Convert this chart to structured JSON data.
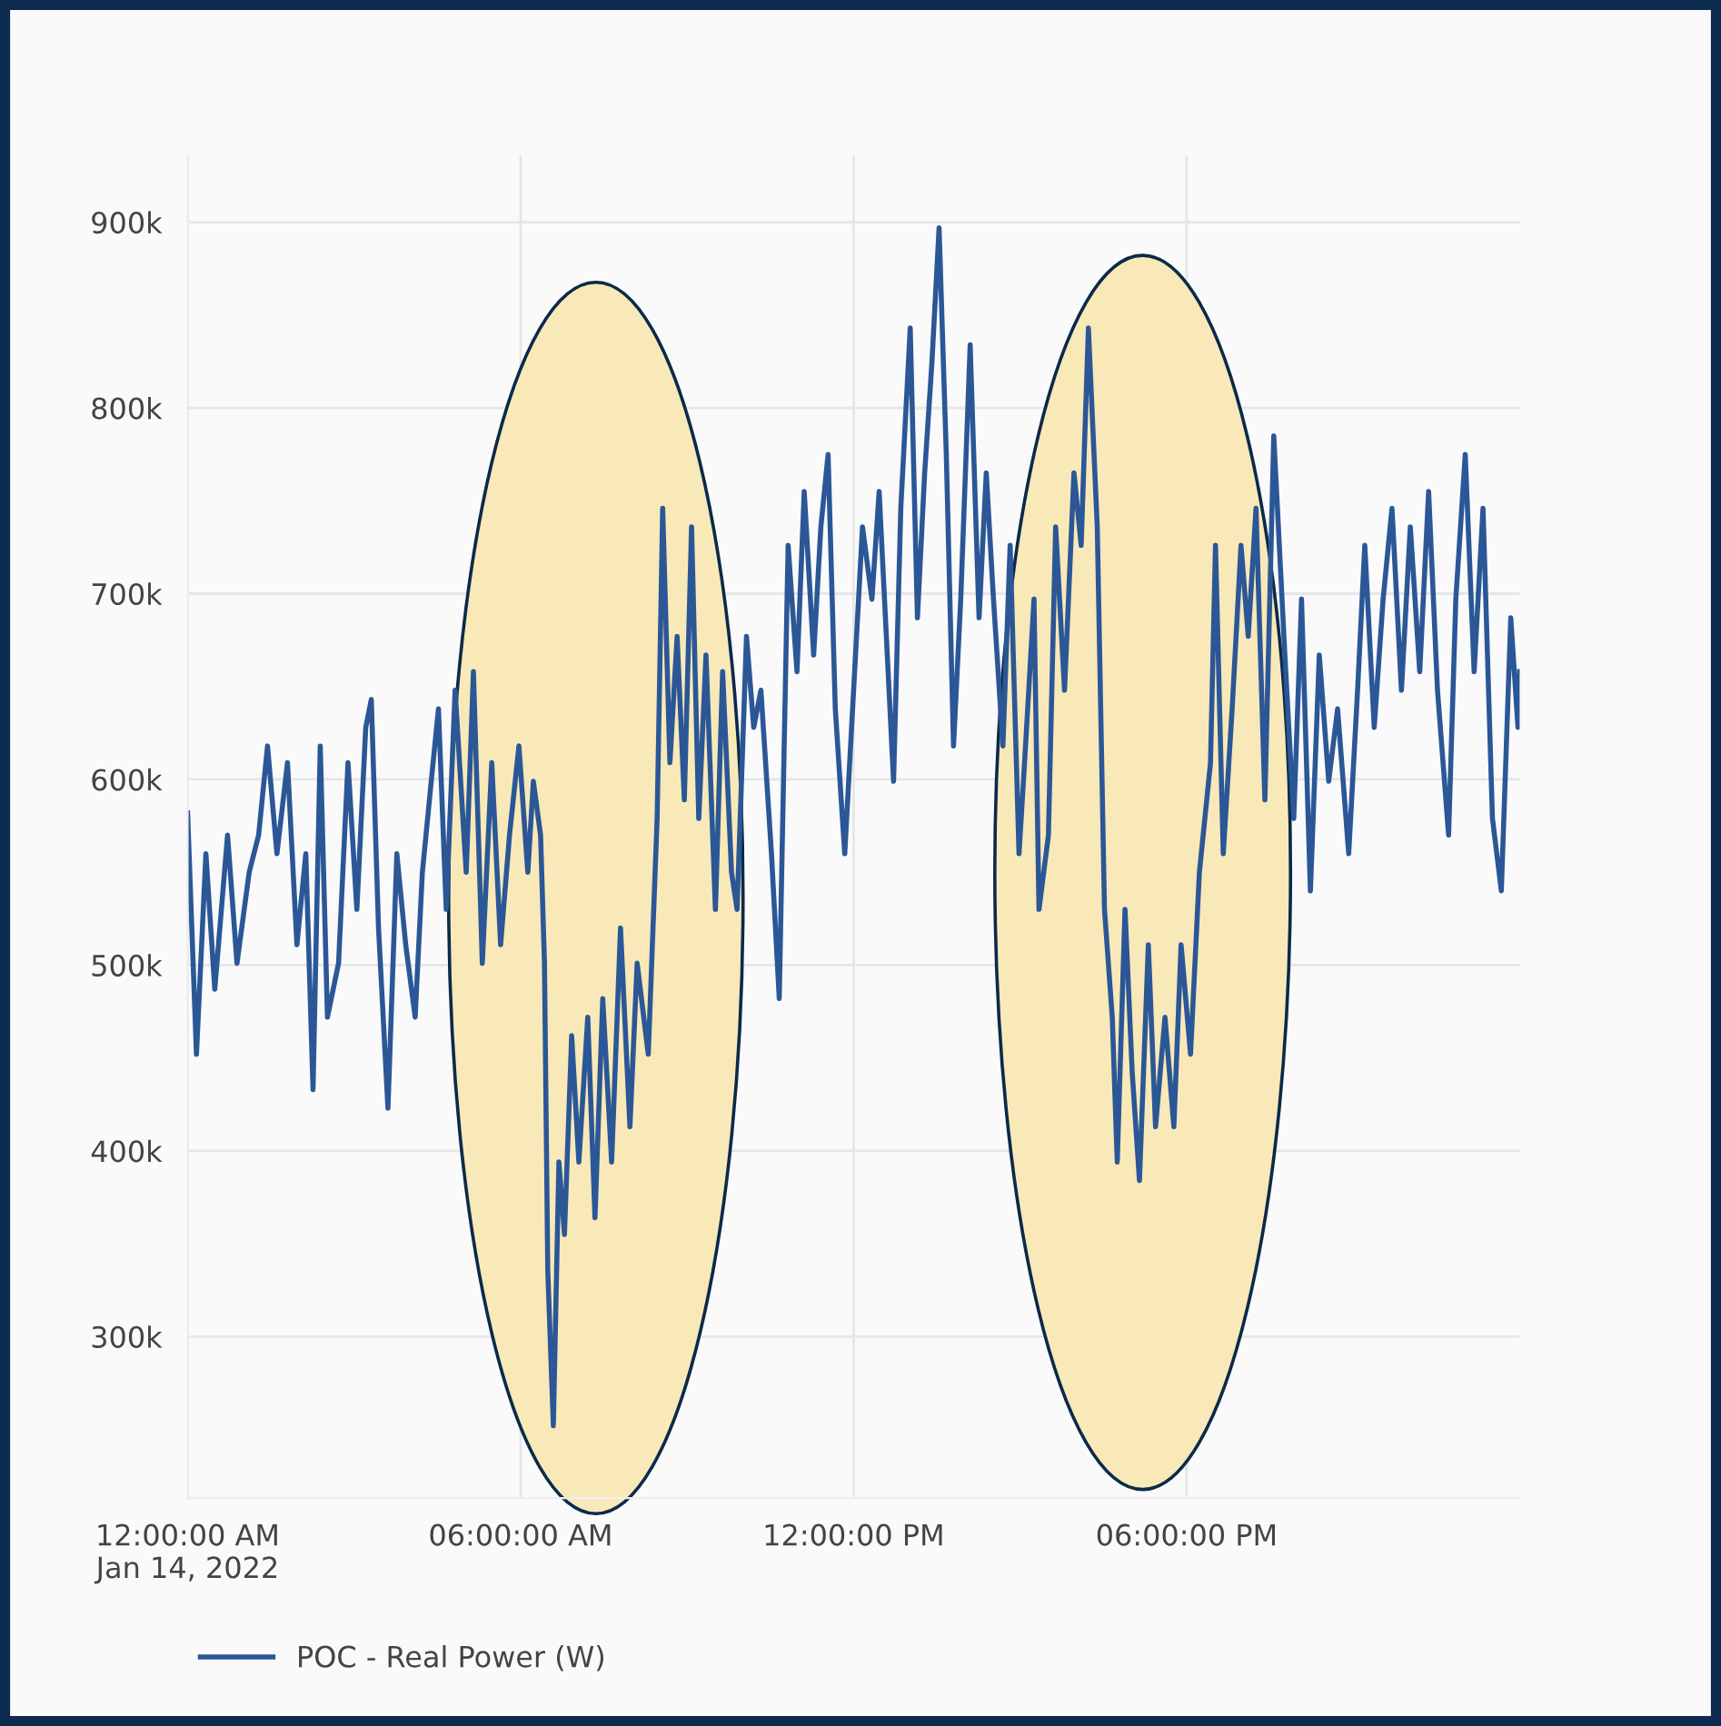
{
  "chart_data": {
    "type": "line",
    "x": [
      0,
      0.16,
      0.33,
      0.49,
      0.72,
      0.89,
      1.11,
      1.28,
      1.44,
      1.61,
      1.8,
      1.97,
      2.13,
      2.26,
      2.39,
      2.52,
      2.72,
      2.89,
      3.05,
      3.21,
      3.31,
      3.44,
      3.61,
      3.77,
      3.93,
      4.1,
      4.23,
      4.39,
      4.52,
      4.66,
      4.82,
      5.02,
      5.15,
      5.31,
      5.48,
      5.64,
      5.8,
      5.97,
      6.13,
      6.23,
      6.36,
      6.43,
      6.49,
      6.59,
      6.69,
      6.79,
      6.92,
      7.05,
      7.21,
      7.34,
      7.48,
      7.64,
      7.8,
      7.97,
      8.1,
      8.3,
      8.46,
      8.56,
      8.69,
      8.82,
      8.95,
      9.08,
      9.21,
      9.34,
      9.51,
      9.64,
      9.8,
      9.9,
      10.07,
      10.2,
      10.33,
      10.52,
      10.66,
      10.82,
      10.98,
      11.11,
      11.28,
      11.41,
      11.54,
      11.67,
      11.84,
      12,
      12.16,
      12.33,
      12.46,
      12.59,
      12.72,
      12.85,
      13.02,
      13.15,
      13.28,
      13.41,
      13.54,
      13.67,
      13.8,
      13.93,
      14.1,
      14.26,
      14.39,
      14.52,
      14.69,
      14.82,
      14.98,
      15.08,
      15.25,
      15.34,
      15.51,
      15.64,
      15.8,
      15.97,
      16.1,
      16.23,
      16.39,
      16.52,
      16.66,
      16.75,
      16.89,
      17.02,
      17.15,
      17.31,
      17.44,
      17.61,
      17.77,
      17.9,
      18.07,
      18.23,
      18.43,
      18.52,
      18.66,
      18.82,
      18.98,
      19.11,
      19.25,
      19.41,
      19.57,
      19.77,
      19.93,
      20.07,
      20.23,
      20.39,
      20.56,
      20.72,
      20.92,
      21.08,
      21.21,
      21.38,
      21.54,
      21.7,
      21.87,
      22.03,
      22.2,
      22.36,
      22.52,
      22.72,
      22.85,
      23.02,
      23.18,
      23.34,
      23.51,
      23.67,
      23.84,
      23.97,
      24
    ],
    "series": [
      {
        "name": "POC - Real Power (W)",
        "color": "#2b5797",
        "values": [
          582000,
          452000,
          560000,
          487000,
          570000,
          501000,
          550000,
          570000,
          618000,
          560000,
          609000,
          511000,
          560000,
          433000,
          618000,
          472000,
          501000,
          609000,
          530000,
          628000,
          643000,
          520000,
          423000,
          560000,
          511000,
          472000,
          550000,
          599000,
          638000,
          530000,
          648000,
          550000,
          658000,
          501000,
          609000,
          511000,
          570000,
          618000,
          550000,
          599000,
          570000,
          501000,
          335000,
          252000,
          394000,
          355000,
          462000,
          394000,
          472000,
          364000,
          482000,
          394000,
          520000,
          413000,
          501000,
          452000,
          579000,
          746000,
          609000,
          677000,
          589000,
          736000,
          579000,
          667000,
          530000,
          658000,
          550000,
          530000,
          677000,
          628000,
          648000,
          560000,
          482000,
          726000,
          658000,
          755000,
          667000,
          736000,
          775000,
          638000,
          560000,
          648000,
          736000,
          697000,
          755000,
          677000,
          599000,
          746000,
          843000,
          687000,
          765000,
          824000,
          897000,
          775000,
          618000,
          697000,
          834000,
          687000,
          765000,
          697000,
          618000,
          726000,
          560000,
          609000,
          697000,
          530000,
          570000,
          736000,
          648000,
          765000,
          726000,
          843000,
          736000,
          530000,
          472000,
          394000,
          530000,
          442000,
          384000,
          511000,
          413000,
          472000,
          413000,
          511000,
          452000,
          550000,
          609000,
          726000,
          560000,
          638000,
          726000,
          677000,
          746000,
          589000,
          785000,
          667000,
          579000,
          697000,
          540000,
          667000,
          599000,
          638000,
          560000,
          648000,
          726000,
          628000,
          697000,
          746000,
          648000,
          736000,
          658000,
          755000,
          648000,
          570000,
          697000,
          775000,
          658000,
          746000,
          579000,
          540000,
          687000,
          628000,
          658000
        ]
      }
    ],
    "xlim": [
      0,
      24
    ],
    "xticks": [
      {
        "value": 0,
        "label": "12:00:00 AM\nJan 14, 2022"
      },
      {
        "value": 6,
        "label": "06:00:00 AM"
      },
      {
        "value": 12,
        "label": "12:00:00 PM"
      },
      {
        "value": 18,
        "label": "06:00:00 PM"
      }
    ],
    "ylim": [
      213000,
      936000
    ],
    "yticks": [
      {
        "value": 300000,
        "label": "300k"
      },
      {
        "value": 400000,
        "label": "400k"
      },
      {
        "value": 500000,
        "label": "500k"
      },
      {
        "value": 600000,
        "label": "600k"
      },
      {
        "value": 700000,
        "label": "700k"
      },
      {
        "value": 800000,
        "label": "800k"
      },
      {
        "value": 900000,
        "label": "900k"
      }
    ],
    "grid": true,
    "legend": "bottom left",
    "marker": "none",
    "line_style": "solid"
  }
}
